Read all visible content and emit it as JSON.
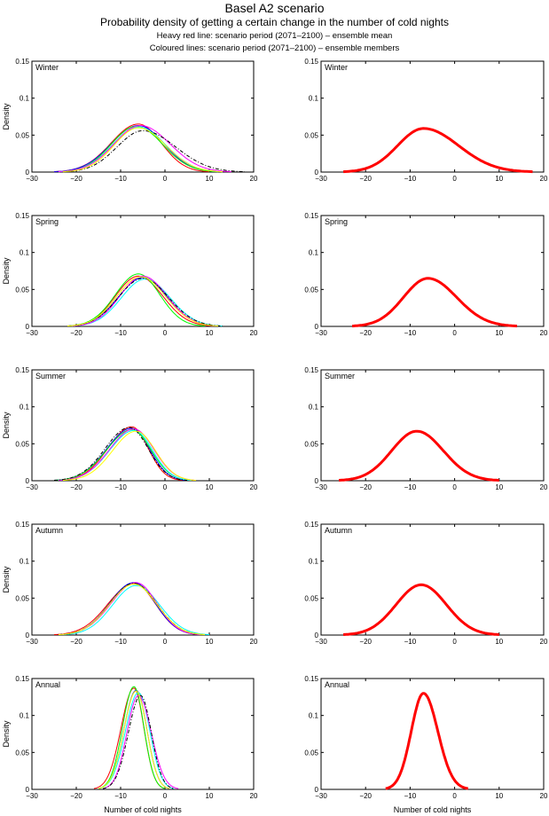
{
  "header": {
    "title": "Basel A2 scenario",
    "subtitle": "Probability density of getting a certain change in the number of cold nights",
    "line1": "Heavy red line: scenario period (2071–2100) – ensemble mean",
    "line2": "Coloured lines: scenario period (2071–2100) – ensemble members"
  },
  "chart_data": {
    "type": "line",
    "xlabel": "Number of cold nights",
    "ylabel": "Density",
    "xlim": [
      -30,
      20
    ],
    "ylim": [
      0,
      0.15
    ],
    "xticks": [
      -30,
      -20,
      -10,
      0,
      10,
      20
    ],
    "yticks": [
      0,
      0.05,
      0.1,
      0.15
    ],
    "xtick_labels": [
      "−30",
      "−20",
      "−10",
      "0",
      "10",
      "20"
    ],
    "ytick_labels": [
      "0",
      "0.05",
      "0.1",
      "0.15"
    ],
    "grid": false,
    "legend": "none",
    "member_colors": [
      "#ff0000",
      "#0000ff",
      "#00ff00",
      "#00ffff",
      "#ff00ff",
      "#000000",
      "#ffff00"
    ],
    "mean_color": "#ff0000",
    "panels": [
      {
        "season": "Winter",
        "members": [
          {
            "peak_x": -6.0,
            "peak_y": 0.065,
            "range": [
              -25,
              10
            ]
          },
          {
            "peak_x": -6.0,
            "peak_y": 0.063,
            "range": [
              -25,
              12
            ]
          },
          {
            "peak_x": -6.5,
            "peak_y": 0.062,
            "range": [
              -24,
              12
            ]
          },
          {
            "peak_x": -6.0,
            "peak_y": 0.061,
            "range": [
              -24,
              13
            ]
          },
          {
            "peak_x": -5.5,
            "peak_y": 0.063,
            "range": [
              -24,
              15
            ]
          },
          {
            "peak_x": -5.0,
            "peak_y": 0.056,
            "range": [
              -23,
              18
            ]
          },
          {
            "peak_x": -6.0,
            "peak_y": 0.06,
            "range": [
              -23,
              13
            ]
          }
        ],
        "mean": {
          "peak_x": -7.0,
          "peak_y": 0.059,
          "range": [
            -25,
            17.5
          ]
        }
      },
      {
        "season": "Spring",
        "members": [
          {
            "peak_x": -6.0,
            "peak_y": 0.068,
            "range": [
              -22,
              11
            ]
          },
          {
            "peak_x": -5.0,
            "peak_y": 0.066,
            "range": [
              -22,
              12
            ]
          },
          {
            "peak_x": -6.0,
            "peak_y": 0.071,
            "range": [
              -22,
              9
            ]
          },
          {
            "peak_x": -4.5,
            "peak_y": 0.064,
            "range": [
              -21,
              13
            ]
          },
          {
            "peak_x": -5.0,
            "peak_y": 0.068,
            "range": [
              -21,
              12
            ]
          },
          {
            "peak_x": -5.0,
            "peak_y": 0.065,
            "range": [
              -22,
              13
            ]
          },
          {
            "peak_x": -5.5,
            "peak_y": 0.067,
            "range": [
              -22,
              12
            ]
          }
        ],
        "mean": {
          "peak_x": -6.0,
          "peak_y": 0.065,
          "range": [
            -23,
            14
          ]
        }
      },
      {
        "season": "Summer",
        "members": [
          {
            "peak_x": -7.5,
            "peak_y": 0.073,
            "range": [
              -24,
              4
            ]
          },
          {
            "peak_x": -7.5,
            "peak_y": 0.071,
            "range": [
              -25,
              5
            ]
          },
          {
            "peak_x": -7.5,
            "peak_y": 0.069,
            "range": [
              -25,
              6
            ]
          },
          {
            "peak_x": -7.0,
            "peak_y": 0.068,
            "range": [
              -24,
              6
            ]
          },
          {
            "peak_x": -7.0,
            "peak_y": 0.07,
            "range": [
              -24,
              7
            ]
          },
          {
            "peak_x": -8.0,
            "peak_y": 0.072,
            "range": [
              -25,
              5
            ]
          },
          {
            "peak_x": -6.5,
            "peak_y": 0.067,
            "range": [
              -23,
              7
            ]
          }
        ],
        "mean": {
          "peak_x": -8.5,
          "peak_y": 0.067,
          "range": [
            -26,
            10
          ]
        }
      },
      {
        "season": "Autumn",
        "members": [
          {
            "peak_x": -7.0,
            "peak_y": 0.07,
            "range": [
              -25,
              8
            ]
          },
          {
            "peak_x": -7.0,
            "peak_y": 0.071,
            "range": [
              -24,
              8
            ]
          },
          {
            "peak_x": -7.0,
            "peak_y": 0.069,
            "range": [
              -24,
              9
            ]
          },
          {
            "peak_x": -6.5,
            "peak_y": 0.067,
            "range": [
              -23,
              10
            ]
          },
          {
            "peak_x": -6.5,
            "peak_y": 0.071,
            "range": [
              -24,
              8
            ]
          },
          {
            "peak_x": -7.0,
            "peak_y": 0.07,
            "range": [
              -24,
              9
            ]
          },
          {
            "peak_x": -7.0,
            "peak_y": 0.069,
            "range": [
              -24,
              9
            ]
          }
        ],
        "mean": {
          "peak_x": -7.5,
          "peak_y": 0.068,
          "range": [
            -25,
            10
          ]
        }
      },
      {
        "season": "Annual",
        "members": [
          {
            "peak_x": -7.0,
            "peak_y": 0.137,
            "range": [
              -16,
              0
            ]
          },
          {
            "peak_x": -6.5,
            "peak_y": 0.134,
            "range": [
              -15,
              1
            ]
          },
          {
            "peak_x": -7.0,
            "peak_y": 0.139,
            "range": [
              -15,
              0
            ]
          },
          {
            "peak_x": -6.0,
            "peak_y": 0.131,
            "range": [
              -15,
              2
            ]
          },
          {
            "peak_x": -6.0,
            "peak_y": 0.127,
            "range": [
              -14,
              3
            ]
          },
          {
            "peak_x": -5.5,
            "peak_y": 0.127,
            "range": [
              -14,
              2
            ]
          },
          {
            "peak_x": -6.5,
            "peak_y": 0.133,
            "range": [
              -15,
              1
            ]
          }
        ],
        "mean": {
          "peak_x": -7.0,
          "peak_y": 0.13,
          "range": [
            -15.5,
            3
          ]
        }
      }
    ]
  }
}
